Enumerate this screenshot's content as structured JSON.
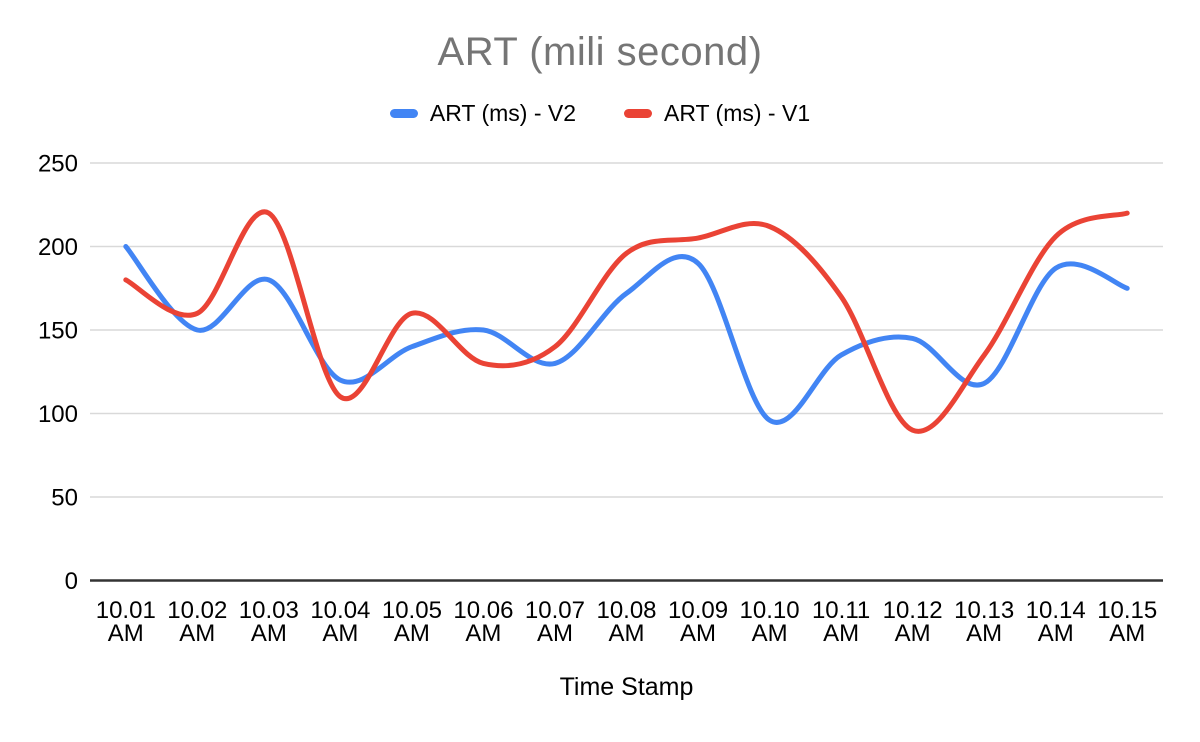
{
  "chart_data": {
    "type": "line",
    "title": "ART (mili second)",
    "title_color": "#757575",
    "xlabel": "Time Stamp",
    "ylabel": "",
    "categories": [
      "10.01 AM",
      "10.02 AM",
      "10.03 AM",
      "10.04 AM",
      "10.05 AM",
      "10.06 AM",
      "10.07 AM",
      "10.08 AM",
      "10.09 AM",
      "10.10 AM",
      "10.11 AM",
      "10.12 AM",
      "10.13 AM",
      "10.14 AM",
      "10.15 AM"
    ],
    "series": [
      {
        "name": "ART (ms) - V2",
        "color": "#4285F4",
        "values": [
          200,
          150,
          180,
          120,
          140,
          150,
          130,
          172,
          190,
          96,
          135,
          145,
          118,
          187,
          175
        ]
      },
      {
        "name": "ART (ms) - V1",
        "color": "#EA4335",
        "values": [
          180,
          160,
          220,
          110,
          160,
          130,
          140,
          196,
          205,
          212,
          170,
          90,
          135,
          206,
          220
        ]
      }
    ],
    "ylim": [
      0,
      250
    ],
    "yticks": [
      0,
      50,
      100,
      150,
      200,
      250
    ],
    "grid": true,
    "smooth": true,
    "legend_position": "top",
    "grid_color": "#d9d9d9",
    "axis_color": "#333333",
    "label_color": "#000000"
  }
}
